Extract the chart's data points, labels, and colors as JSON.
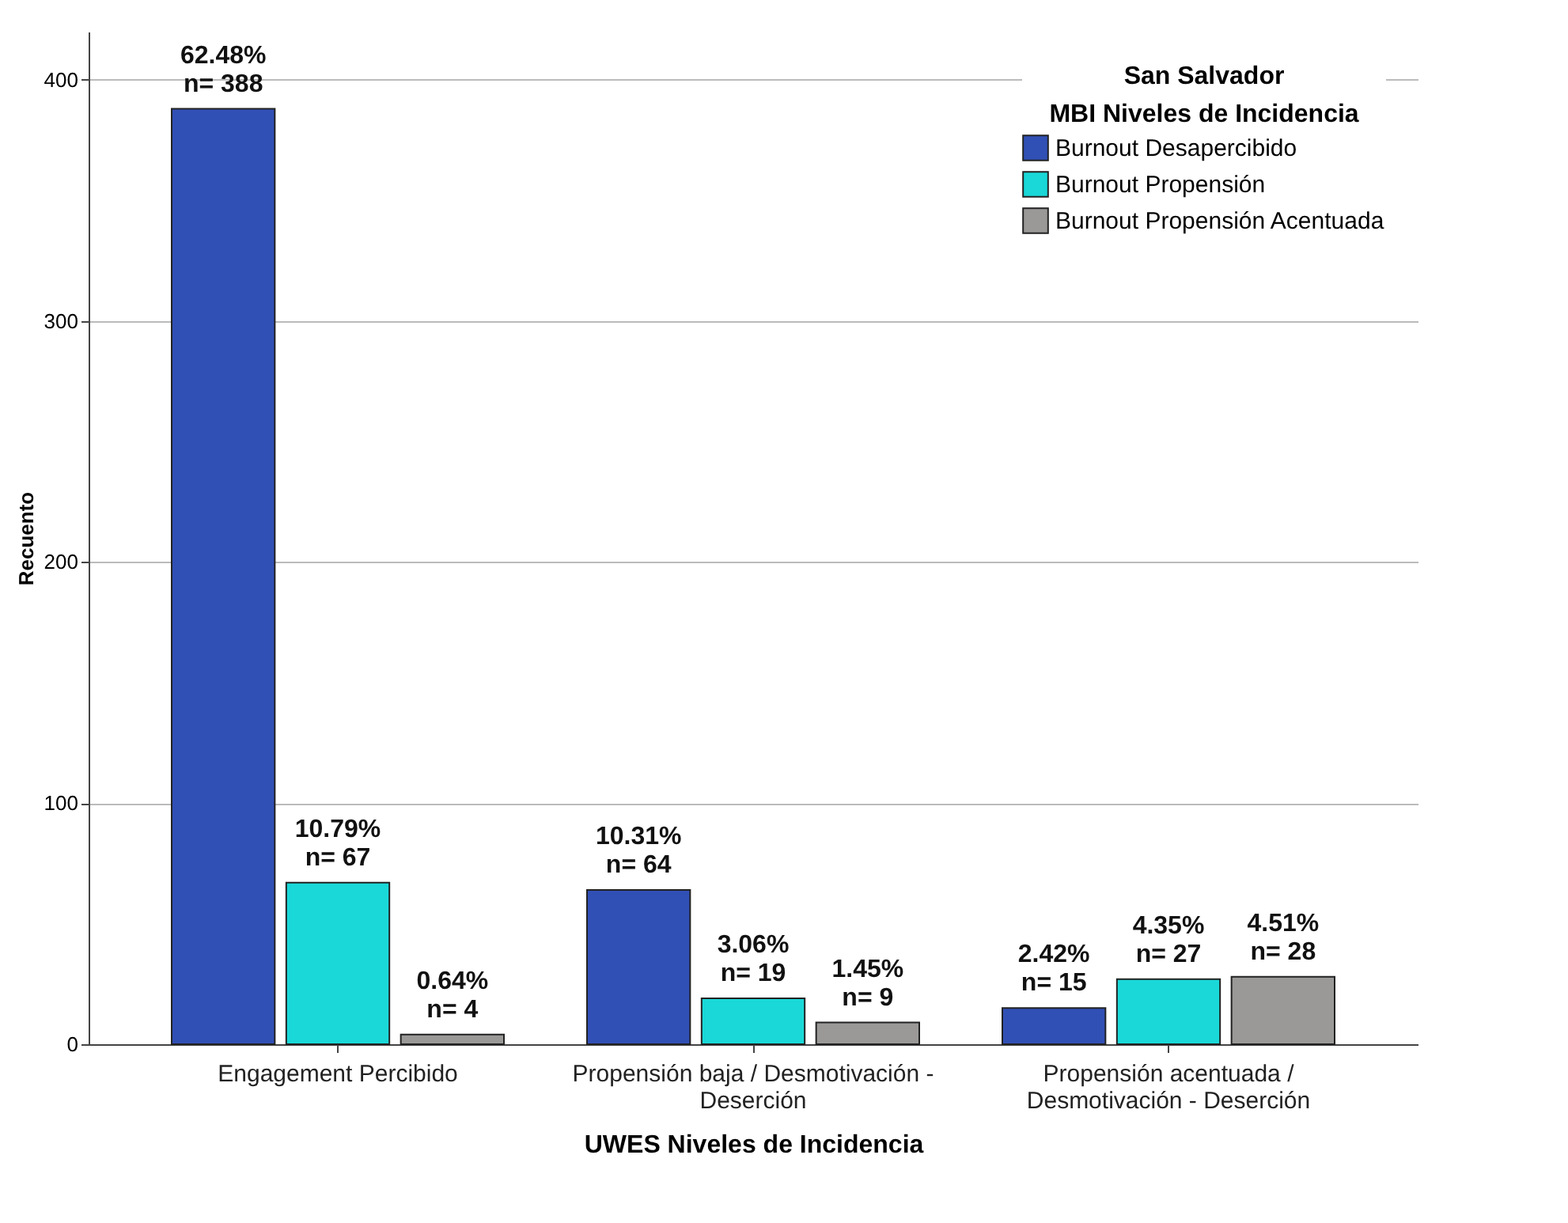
{
  "chart_data": {
    "type": "bar",
    "xlabel": "UWES Niveles de Incidencia",
    "ylabel": "Recuento",
    "legend_title": "San Salvador\nMBI Niveles de Incidencia",
    "categories": [
      "Engagement Percibido",
      "Propensión baja / Desmotivación - Deserción",
      "Propensión acentuada / Desmotivación - Deserción"
    ],
    "series": [
      {
        "name": "Burnout Desapercibido",
        "color": "#3150b5",
        "values": [
          388,
          64,
          15
        ],
        "value_labels": [
          "62.48%\nn= 388",
          "10.31%\nn= 64",
          "2.42%\nn= 15"
        ]
      },
      {
        "name": "Burnout Propensión",
        "color": "#1ad8d8",
        "values": [
          67,
          19,
          27
        ],
        "value_labels": [
          "10.79%\nn= 67",
          "3.06%\nn= 19",
          "4.35%\nn= 27"
        ]
      },
      {
        "name": "Burnout Propensión Acentuada",
        "color": "#9b9998",
        "values": [
          4,
          9,
          28
        ],
        "value_labels": [
          "0.64%\nn= 4",
          "1.45%\nn= 9",
          "4.51%\nn= 28"
        ]
      }
    ],
    "ylim": [
      0,
      420
    ],
    "yticks": [
      0,
      100,
      200,
      300,
      400
    ],
    "grid": "y",
    "legend": "top right"
  }
}
